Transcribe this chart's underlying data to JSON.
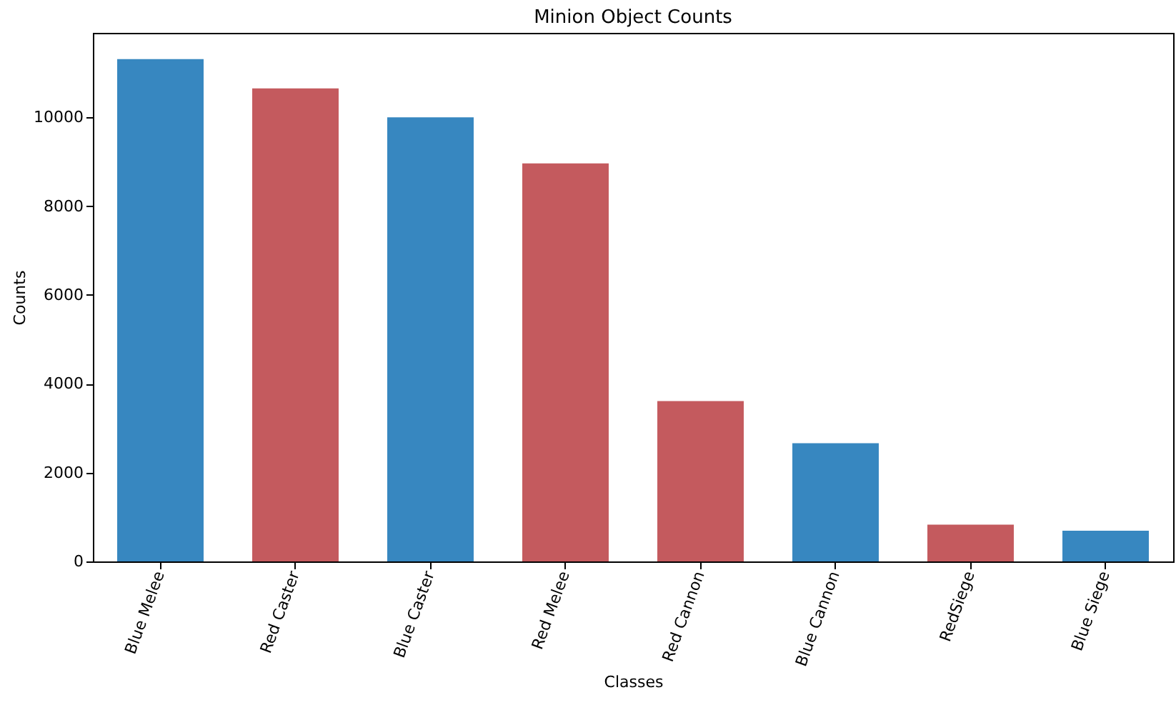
{
  "chart_data": {
    "type": "bar",
    "title": "Minion Object Counts",
    "xlabel": "Classes",
    "ylabel": "Counts",
    "categories": [
      "Blue Melee",
      "Red Caster",
      "Blue Caster",
      "Red Melee",
      "Red Cannon",
      "Blue Cannon",
      "RedSiege",
      "Blue Siege"
    ],
    "values": [
      11310,
      10650,
      10000,
      8960,
      3610,
      2660,
      830,
      690
    ],
    "colors": [
      "#3787c0",
      "#c45a5e",
      "#3787c0",
      "#c45a5e",
      "#c45a5e",
      "#3787c0",
      "#c45a5e",
      "#3787c0"
    ],
    "ylim": [
      0,
      11900
    ],
    "yticks": [
      0,
      2000,
      4000,
      6000,
      8000,
      10000
    ],
    "grid": false
  }
}
